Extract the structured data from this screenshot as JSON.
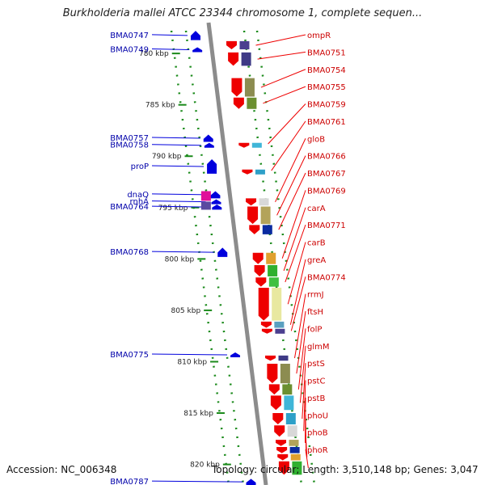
{
  "title": "Burkholderia mallei ATCC 23344 chromosome 1, complete sequen...",
  "footer": {
    "accession": "Accession: NC_006348",
    "topology": "Topology: circular; Length: 3,510,148 bp; Genes: 3,047"
  },
  "colors": {
    "backbone": "#8c8c8c",
    "forward_strand": "#ee0000",
    "reverse_strand": "#0000dd",
    "forward_label": "#cc0000",
    "reverse_label": "#0000aa",
    "tick": "#1a8a1a"
  },
  "scale": {
    "unit": "kbp",
    "min": 777,
    "max": 822,
    "tick_labels": [
      {
        "pos": 780,
        "text": "780 kbp"
      },
      {
        "pos": 785,
        "text": "785 kbp"
      },
      {
        "pos": 790,
        "text": "790 kbp"
      },
      {
        "pos": 795,
        "text": "795 kbp"
      },
      {
        "pos": 800,
        "text": "800 kbp"
      },
      {
        "pos": 805,
        "text": "805 kbp"
      },
      {
        "pos": 810,
        "text": "810 kbp"
      },
      {
        "pos": 815,
        "text": "815 kbp"
      },
      {
        "pos": 820,
        "text": "820 kbp"
      }
    ]
  },
  "genes": {
    "forward": [
      {
        "name": "ompR",
        "start": 778.8,
        "end": 779.6
      },
      {
        "name": "BMA0751",
        "start": 779.9,
        "end": 781.2
      },
      {
        "name": "BMA0754",
        "start": 782.4,
        "end": 784.2
      },
      {
        "name": "BMA0755",
        "start": 784.3,
        "end": 785.4
      },
      {
        "name": "BMA0759",
        "start": 788.7,
        "end": 788.9
      },
      {
        "name": "BMA0761",
        "start": 791.3,
        "end": 791.5
      },
      {
        "name": "gloB",
        "start": 794.1,
        "end": 794.8
      },
      {
        "name": "BMA0766",
        "start": 794.9,
        "end": 796.6
      },
      {
        "name": "BMA0767",
        "start": 796.7,
        "end": 797.6
      },
      {
        "name": "BMA0769",
        "start": 799.4,
        "end": 800.5
      },
      {
        "name": "carA",
        "start": 800.6,
        "end": 801.7
      },
      {
        "name": "BMA0771",
        "start": 801.8,
        "end": 802.7
      },
      {
        "name": "carB",
        "start": 802.8,
        "end": 806.0
      },
      {
        "name": "greA",
        "start": 806.1,
        "end": 806.7
      },
      {
        "name": "BMA0774",
        "start": 806.8,
        "end": 807.2
      },
      {
        "name": "rrmJ",
        "start": 809.4,
        "end": 809.9
      },
      {
        "name": "ftsH",
        "start": 810.2,
        "end": 812.1
      },
      {
        "name": "folP",
        "start": 812.2,
        "end": 813.2
      },
      {
        "name": "glmM",
        "start": 813.3,
        "end": 814.7
      },
      {
        "name": "pstS",
        "start": 815.0,
        "end": 816.1
      },
      {
        "name": "pstC",
        "start": 816.2,
        "end": 817.3
      },
      {
        "name": "pstB",
        "start": 817.6,
        "end": 818.2
      },
      {
        "name": "phoU",
        "start": 818.3,
        "end": 818.9
      },
      {
        "name": "phoB",
        "start": 819.0,
        "end": 819.6
      },
      {
        "name": "phoR",
        "start": 819.7,
        "end": 821.0
      }
    ],
    "reverse": [
      {
        "name": "BMA0747",
        "start": 777.8,
        "end": 778.7
      },
      {
        "name": "BMA0749",
        "start": 779.4,
        "end": 779.8
      },
      {
        "name": "BMA0757",
        "start": 787.9,
        "end": 788.6
      },
      {
        "name": "BMA0758",
        "start": 788.7,
        "end": 789.0
      },
      {
        "name": "proP",
        "start": 790.3,
        "end": 791.7
      },
      {
        "name": "dnaQ",
        "start": 793.4,
        "end": 794.1
      },
      {
        "name": "rnhA",
        "start": 794.2,
        "end": 794.6
      },
      {
        "name": "BMA0764",
        "start": 794.7,
        "end": 795.2
      },
      {
        "name": "BMA0768",
        "start": 798.9,
        "end": 799.8
      },
      {
        "name": "BMA0775",
        "start": 809.1,
        "end": 809.5
      },
      {
        "name": "BMA0787",
        "start": 821.4,
        "end": 822.0
      }
    ]
  }
}
